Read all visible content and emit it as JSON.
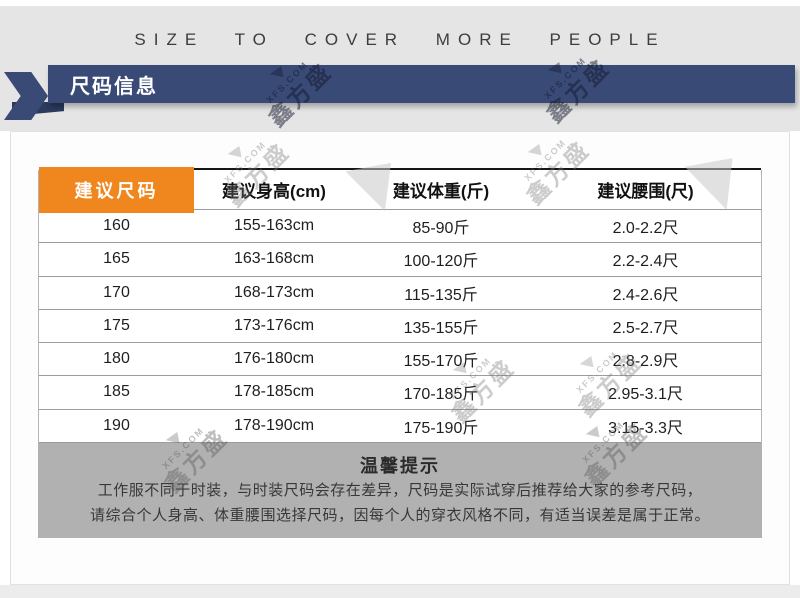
{
  "slogan": "SIZE TO COVER MORE PEOPLE",
  "ribbon": {
    "title": "尺码信息"
  },
  "table": {
    "headers": [
      "建议尺码",
      "建议身高(cm)",
      "建议体重(斤)",
      "建议腰围(尺)"
    ],
    "rows": [
      [
        "160",
        "155-163cm",
        "85-90斤",
        "2.0-2.2尺"
      ],
      [
        "165",
        "163-168cm",
        "100-120斤",
        "2.2-2.4尺"
      ],
      [
        "170",
        "168-173cm",
        "115-135斤",
        "2.4-2.6尺"
      ],
      [
        "175",
        "173-176cm",
        "135-155斤",
        "2.5-2.7尺"
      ],
      [
        "180",
        "176-180cm",
        "155-170斤",
        "2.8-2.9尺"
      ],
      [
        "185",
        "178-185cm",
        "170-185斤",
        "2.95-3.1尺"
      ],
      [
        "190",
        "178-190cm",
        "175-190斤",
        "3.15-3.3尺"
      ]
    ]
  },
  "tips": {
    "title": "温馨提示",
    "line1": "工作服不同于时装，与时装尺码会存在差异，尺码是实际试穿后推荐给大家的参考尺码，",
    "line2": "请综合个人身高、体重腰围选择尺码，因每个人的穿衣风格不同，有适当误差是属于正常。"
  },
  "watermark": {
    "site": "XFS.COM",
    "brand": "鑫方盛"
  },
  "colors": {
    "navy": "#3a4a77",
    "navy_dark": "#2c3a5e",
    "orange": "#f0871e",
    "tips_bg": "#b1b1b1",
    "gray_band": "#e5e5e5"
  }
}
